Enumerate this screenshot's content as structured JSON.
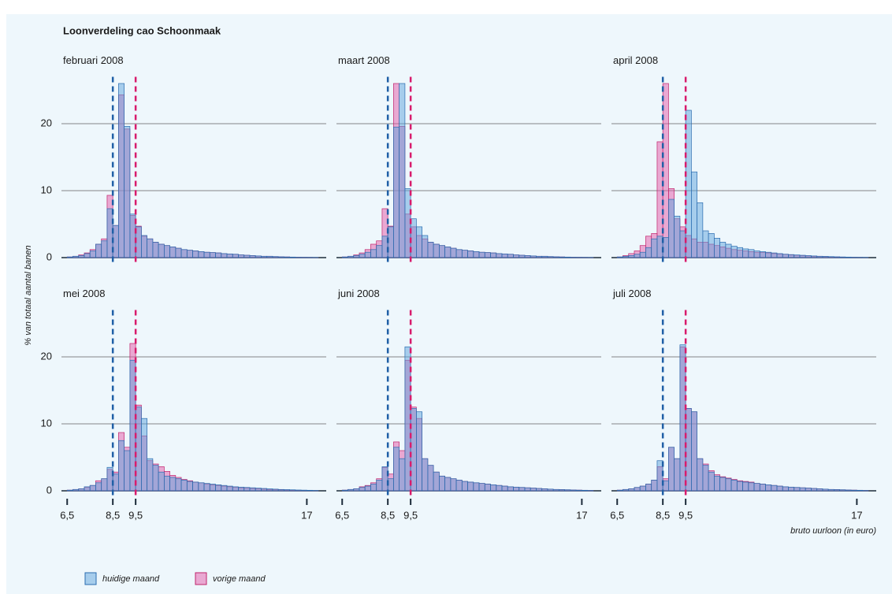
{
  "title": "Loonverdeling cao Schoonmaak",
  "y_label": "% van totaal aantal banen",
  "chart_data": [
    {
      "type": "histogram",
      "title": "februari 2008",
      "bins": [
        6.5,
        6.75,
        7,
        7.25,
        7.5,
        7.75,
        8,
        8.25,
        8.5,
        8.75,
        9,
        9.25,
        9.5,
        9.75,
        10,
        10.25,
        10.5,
        10.75,
        11,
        11.25,
        11.5,
        11.75,
        12,
        12.25,
        12.5,
        12.75,
        13,
        13.25,
        13.5,
        13.75,
        14,
        14.25,
        14.5,
        14.75,
        15,
        15.25,
        15.5,
        15.75,
        16,
        16.25,
        16.5,
        16.75,
        17,
        17.25,
        17.5
      ],
      "series": [
        {
          "name": "huidige maand",
          "color": "#5ea3dc",
          "edge": "#2a6cb0",
          "values": [
            0.1,
            0.2,
            0.3,
            0.6,
            1.0,
            2.0,
            2.5,
            7.3,
            4.8,
            26,
            19.6,
            6.5,
            4.6,
            3.3,
            2.8,
            2.3,
            2.0,
            1.8,
            1.6,
            1.4,
            1.2,
            1.1,
            1.0,
            0.9,
            0.8,
            0.75,
            0.7,
            0.6,
            0.55,
            0.5,
            0.4,
            0.35,
            0.3,
            0.25,
            0.2,
            0.2,
            0.15,
            0.12,
            0.1,
            0.08,
            0.05,
            0.04,
            0.03,
            0.02
          ]
        },
        {
          "name": "vorige maand",
          "color": "#e45aa8",
          "edge": "#c0246c",
          "values": [
            0.1,
            0.2,
            0.4,
            0.7,
            1.2,
            2.0,
            2.8,
            9.3,
            4.8,
            24.3,
            19.2,
            6.3,
            4.7,
            3.2,
            2.8,
            2.3,
            2.0,
            1.8,
            1.6,
            1.4,
            1.2,
            1.1,
            1.0,
            0.9,
            0.8,
            0.75,
            0.7,
            0.6,
            0.55,
            0.5,
            0.4,
            0.35,
            0.3,
            0.25,
            0.2,
            0.2,
            0.15,
            0.12,
            0.1,
            0.08,
            0.05,
            0.04,
            0.03,
            0.02
          ]
        }
      ],
      "xlim": [
        6.25,
        17.85
      ],
      "ylim": [
        0,
        27
      ],
      "yticks": [
        0,
        10,
        20
      ],
      "grid": true,
      "reference_lines": [
        {
          "value": 8.5,
          "color": "#1f5fa6"
        },
        {
          "value": 9.5,
          "color": "#d81b6c"
        }
      ]
    },
    {
      "type": "histogram",
      "title": "maart 2008",
      "bins": [
        6.5,
        6.75,
        7,
        7.25,
        7.5,
        7.75,
        8,
        8.25,
        8.5,
        8.75,
        9,
        9.25,
        9.5,
        9.75,
        10,
        10.25,
        10.5,
        10.75,
        11,
        11.25,
        11.5,
        11.75,
        12,
        12.25,
        12.5,
        12.75,
        13,
        13.25,
        13.5,
        13.75,
        14,
        14.25,
        14.5,
        14.75,
        15,
        15.25,
        15.5,
        15.75,
        16,
        16.25,
        16.5,
        16.75,
        17,
        17.25,
        17.5
      ],
      "series": [
        {
          "name": "huidige maand",
          "color": "#5ea3dc",
          "edge": "#2a6cb0",
          "values": [
            0.1,
            0.2,
            0.3,
            0.5,
            0.8,
            1.2,
            1.8,
            3.2,
            4.6,
            19.5,
            26,
            10.3,
            5.8,
            4.6,
            3.3,
            2.3,
            2.0,
            1.8,
            1.6,
            1.4,
            1.2,
            1.1,
            1.0,
            0.9,
            0.8,
            0.75,
            0.7,
            0.6,
            0.55,
            0.5,
            0.4,
            0.35,
            0.3,
            0.25,
            0.2,
            0.2,
            0.15,
            0.12,
            0.1,
            0.08,
            0.05,
            0.04,
            0.03,
            0.02
          ]
        },
        {
          "name": "vorige maand",
          "color": "#e45aa8",
          "edge": "#c0246c",
          "values": [
            0.1,
            0.2,
            0.4,
            0.7,
            1.2,
            2.0,
            2.5,
            7.3,
            4.7,
            26,
            19.6,
            6.5,
            4.6,
            3.3,
            2.8,
            2.3,
            2.0,
            1.8,
            1.6,
            1.4,
            1.2,
            1.1,
            1.0,
            0.9,
            0.8,
            0.75,
            0.7,
            0.6,
            0.55,
            0.5,
            0.4,
            0.35,
            0.3,
            0.25,
            0.2,
            0.2,
            0.15,
            0.12,
            0.1,
            0.08,
            0.05,
            0.04,
            0.03,
            0.02
          ]
        }
      ],
      "xlim": [
        6.25,
        17.85
      ],
      "ylim": [
        0,
        27
      ],
      "yticks": [
        0,
        10,
        20
      ],
      "grid": true,
      "reference_lines": [
        {
          "value": 8.5,
          "color": "#1f5fa6"
        },
        {
          "value": 9.5,
          "color": "#d81b6c"
        }
      ]
    },
    {
      "type": "histogram",
      "title": "april 2008",
      "bins": [
        6.5,
        6.75,
        7,
        7.25,
        7.5,
        7.75,
        8,
        8.25,
        8.5,
        8.75,
        9,
        9.25,
        9.5,
        9.75,
        10,
        10.25,
        10.5,
        10.75,
        11,
        11.25,
        11.5,
        11.75,
        12,
        12.25,
        12.5,
        12.75,
        13,
        13.25,
        13.5,
        13.75,
        14,
        14.25,
        14.5,
        14.75,
        15,
        15.25,
        15.5,
        15.75,
        16,
        16.25,
        16.5,
        16.75,
        17,
        17.25,
        17.5
      ],
      "series": [
        {
          "name": "huidige maand",
          "color": "#5ea3dc",
          "edge": "#2a6cb0",
          "values": [
            0.1,
            0.2,
            0.3,
            0.5,
            0.8,
            1.5,
            2.8,
            3.2,
            3.0,
            8.7,
            6.2,
            4.0,
            22,
            12.8,
            8.2,
            4.0,
            3.6,
            2.9,
            2.3,
            2.0,
            1.7,
            1.5,
            1.3,
            1.2,
            1.0,
            0.9,
            0.8,
            0.7,
            0.6,
            0.5,
            0.45,
            0.4,
            0.35,
            0.3,
            0.25,
            0.2,
            0.18,
            0.15,
            0.12,
            0.1,
            0.08,
            0.05,
            0.04,
            0.03
          ]
        },
        {
          "name": "vorige maand",
          "color": "#e45aa8",
          "edge": "#c0246c",
          "values": [
            0.1,
            0.3,
            0.6,
            1.0,
            1.8,
            3.2,
            3.6,
            17.3,
            26,
            10.3,
            5.8,
            4.6,
            3.3,
            2.8,
            2.3,
            2.3,
            2.0,
            1.8,
            1.6,
            1.4,
            1.2,
            1.1,
            1.0,
            0.9,
            0.8,
            0.75,
            0.7,
            0.6,
            0.55,
            0.5,
            0.4,
            0.35,
            0.3,
            0.25,
            0.2,
            0.2,
            0.15,
            0.12,
            0.1,
            0.08,
            0.05,
            0.04,
            0.03,
            0.02
          ]
        }
      ],
      "xlim": [
        6.25,
        17.85
      ],
      "ylim": [
        0,
        27
      ],
      "yticks": [
        0,
        10,
        20
      ],
      "grid": true,
      "reference_lines": [
        {
          "value": 8.5,
          "color": "#1f5fa6"
        },
        {
          "value": 9.5,
          "color": "#d81b6c"
        }
      ]
    },
    {
      "type": "histogram",
      "title": "mei 2008",
      "bins": [
        6.5,
        6.75,
        7,
        7.25,
        7.5,
        7.75,
        8,
        8.25,
        8.5,
        8.75,
        9,
        9.25,
        9.5,
        9.75,
        10,
        10.25,
        10.5,
        10.75,
        11,
        11.25,
        11.5,
        11.75,
        12,
        12.25,
        12.5,
        12.75,
        13,
        13.25,
        13.5,
        13.75,
        14,
        14.25,
        14.5,
        14.75,
        15,
        15.25,
        15.5,
        15.75,
        16,
        16.25,
        16.5,
        16.75,
        17,
        17.25,
        17.5
      ],
      "series": [
        {
          "name": "huidige maand",
          "color": "#5ea3dc",
          "edge": "#2a6cb0",
          "values": [
            0.1,
            0.2,
            0.3,
            0.6,
            0.8,
            1.2,
            1.8,
            3.5,
            2.5,
            7.5,
            6.0,
            19.5,
            12.5,
            10.8,
            4.8,
            3.8,
            2.8,
            2.2,
            2.0,
            1.8,
            1.6,
            1.4,
            1.3,
            1.2,
            1.1,
            1.0,
            0.9,
            0.8,
            0.7,
            0.6,
            0.55,
            0.5,
            0.45,
            0.4,
            0.35,
            0.3,
            0.25,
            0.2,
            0.18,
            0.15,
            0.12,
            0.1,
            0.08,
            0.05
          ]
        },
        {
          "name": "vorige maand",
          "color": "#e45aa8",
          "edge": "#c0246c",
          "values": [
            0.1,
            0.2,
            0.3,
            0.5,
            0.8,
            1.5,
            1.8,
            3.2,
            2.8,
            8.7,
            6.5,
            22,
            12.8,
            8.2,
            4.5,
            4.0,
            3.6,
            2.9,
            2.3,
            2.0,
            1.7,
            1.5,
            1.3,
            1.2,
            1.0,
            0.9,
            0.8,
            0.7,
            0.6,
            0.5,
            0.45,
            0.4,
            0.35,
            0.3,
            0.25,
            0.2,
            0.18,
            0.15,
            0.12,
            0.1,
            0.08,
            0.05,
            0.04,
            0.03
          ]
        }
      ],
      "xlim": [
        6.25,
        17.85
      ],
      "ylim": [
        0,
        27
      ],
      "yticks": [
        0,
        10,
        20
      ],
      "grid": true,
      "xticks": [
        {
          "value": 6.5,
          "label": "6,5"
        },
        {
          "value": 8.5,
          "label": "8,5"
        },
        {
          "value": 9.5,
          "label": "9,5"
        },
        17
      ],
      "reference_lines": [
        {
          "value": 8.5,
          "color": "#1f5fa6"
        },
        {
          "value": 9.5,
          "color": "#d81b6c"
        }
      ]
    },
    {
      "type": "histogram",
      "title": "juni 2008",
      "bins": [
        6.5,
        6.75,
        7,
        7.25,
        7.5,
        7.75,
        8,
        8.25,
        8.5,
        8.75,
        9,
        9.25,
        9.5,
        9.75,
        10,
        10.25,
        10.5,
        10.75,
        11,
        11.25,
        11.5,
        11.75,
        12,
        12.25,
        12.5,
        12.75,
        13,
        13.25,
        13.5,
        13.75,
        14,
        14.25,
        14.5,
        14.75,
        15,
        15.25,
        15.5,
        15.75,
        16,
        16.25,
        16.5,
        16.75,
        17,
        17.25,
        17.5
      ],
      "series": [
        {
          "name": "huidige maand",
          "color": "#5ea3dc",
          "edge": "#2a6cb0",
          "values": [
            0.1,
            0.2,
            0.3,
            0.5,
            0.7,
            1.0,
            1.6,
            3.6,
            1.8,
            6.5,
            4.8,
            21.5,
            12.3,
            11.8,
            4.8,
            3.8,
            2.8,
            2.2,
            2.0,
            1.8,
            1.6,
            1.4,
            1.3,
            1.2,
            1.1,
            1.0,
            0.9,
            0.8,
            0.7,
            0.6,
            0.55,
            0.5,
            0.45,
            0.4,
            0.35,
            0.3,
            0.25,
            0.2,
            0.18,
            0.15,
            0.12,
            0.1,
            0.08,
            0.05
          ]
        },
        {
          "name": "vorige maand",
          "color": "#e45aa8",
          "edge": "#c0246c",
          "values": [
            0.1,
            0.2,
            0.3,
            0.6,
            0.8,
            1.2,
            1.8,
            3.5,
            2.5,
            7.3,
            6.0,
            19.5,
            12.5,
            10.8,
            4.8,
            3.8,
            2.8,
            2.2,
            2.0,
            1.8,
            1.6,
            1.4,
            1.3,
            1.2,
            1.1,
            1.0,
            0.9,
            0.8,
            0.7,
            0.6,
            0.55,
            0.5,
            0.45,
            0.4,
            0.35,
            0.3,
            0.25,
            0.2,
            0.18,
            0.15,
            0.12,
            0.1,
            0.08,
            0.05
          ]
        }
      ],
      "xlim": [
        6.25,
        17.85
      ],
      "ylim": [
        0,
        27
      ],
      "yticks": [
        0,
        10,
        20
      ],
      "grid": true,
      "xticks": [
        {
          "value": 6.5,
          "label": "6,5"
        },
        {
          "value": 8.5,
          "label": "8,5"
        },
        {
          "value": 9.5,
          "label": "9,5"
        },
        17
      ],
      "reference_lines": [
        {
          "value": 8.5,
          "color": "#1f5fa6"
        },
        {
          "value": 9.5,
          "color": "#d81b6c"
        }
      ]
    },
    {
      "type": "histogram",
      "title": "juli 2008",
      "x_label": "bruto uurloon (in euro)",
      "bins": [
        6.5,
        6.75,
        7,
        7.25,
        7.5,
        7.75,
        8,
        8.25,
        8.5,
        8.75,
        9,
        9.25,
        9.5,
        9.75,
        10,
        10.25,
        10.5,
        10.75,
        11,
        11.25,
        11.5,
        11.75,
        12,
        12.25,
        12.5,
        12.75,
        13,
        13.25,
        13.5,
        13.75,
        14,
        14.25,
        14.5,
        14.75,
        15,
        15.25,
        15.5,
        15.75,
        16,
        16.25,
        16.5,
        16.75,
        17,
        17.25,
        17.5
      ],
      "series": [
        {
          "name": "huidige maand",
          "color": "#5ea3dc",
          "edge": "#2a6cb0",
          "values": [
            0.1,
            0.2,
            0.3,
            0.5,
            0.7,
            1.0,
            1.6,
            4.5,
            1.5,
            6.5,
            4.8,
            21.8,
            12.3,
            11.8,
            4.8,
            3.8,
            2.8,
            2.2,
            2.0,
            1.8,
            1.6,
            1.4,
            1.3,
            1.2,
            1.1,
            1.0,
            0.9,
            0.8,
            0.7,
            0.6,
            0.55,
            0.5,
            0.45,
            0.4,
            0.35,
            0.3,
            0.25,
            0.2,
            0.18,
            0.15,
            0.12,
            0.1,
            0.08,
            0.05
          ]
        },
        {
          "name": "vorige maand",
          "color": "#e45aa8",
          "edge": "#c0246c",
          "values": [
            0.1,
            0.2,
            0.3,
            0.5,
            0.7,
            1.0,
            1.6,
            3.6,
            1.8,
            6.5,
            4.8,
            21.5,
            12.3,
            11.8,
            4.8,
            4.0,
            3.0,
            2.4,
            2.1,
            1.9,
            1.7,
            1.5,
            1.4,
            1.3,
            1.1,
            1.0,
            0.9,
            0.8,
            0.7,
            0.6,
            0.55,
            0.5,
            0.45,
            0.4,
            0.35,
            0.3,
            0.25,
            0.2,
            0.18,
            0.15,
            0.12,
            0.1,
            0.08,
            0.05
          ]
        }
      ],
      "xlim": [
        6.25,
        17.85
      ],
      "ylim": [
        0,
        27
      ],
      "yticks": [
        0,
        10,
        20
      ],
      "grid": true,
      "xticks": [
        {
          "value": 6.5,
          "label": "6,5"
        },
        {
          "value": 8.5,
          "label": "8,5"
        },
        {
          "value": 9.5,
          "label": "9,5"
        },
        17
      ],
      "reference_lines": [
        {
          "value": 8.5,
          "color": "#1f5fa6"
        },
        {
          "value": 9.5,
          "color": "#d81b6c"
        }
      ]
    }
  ]
}
